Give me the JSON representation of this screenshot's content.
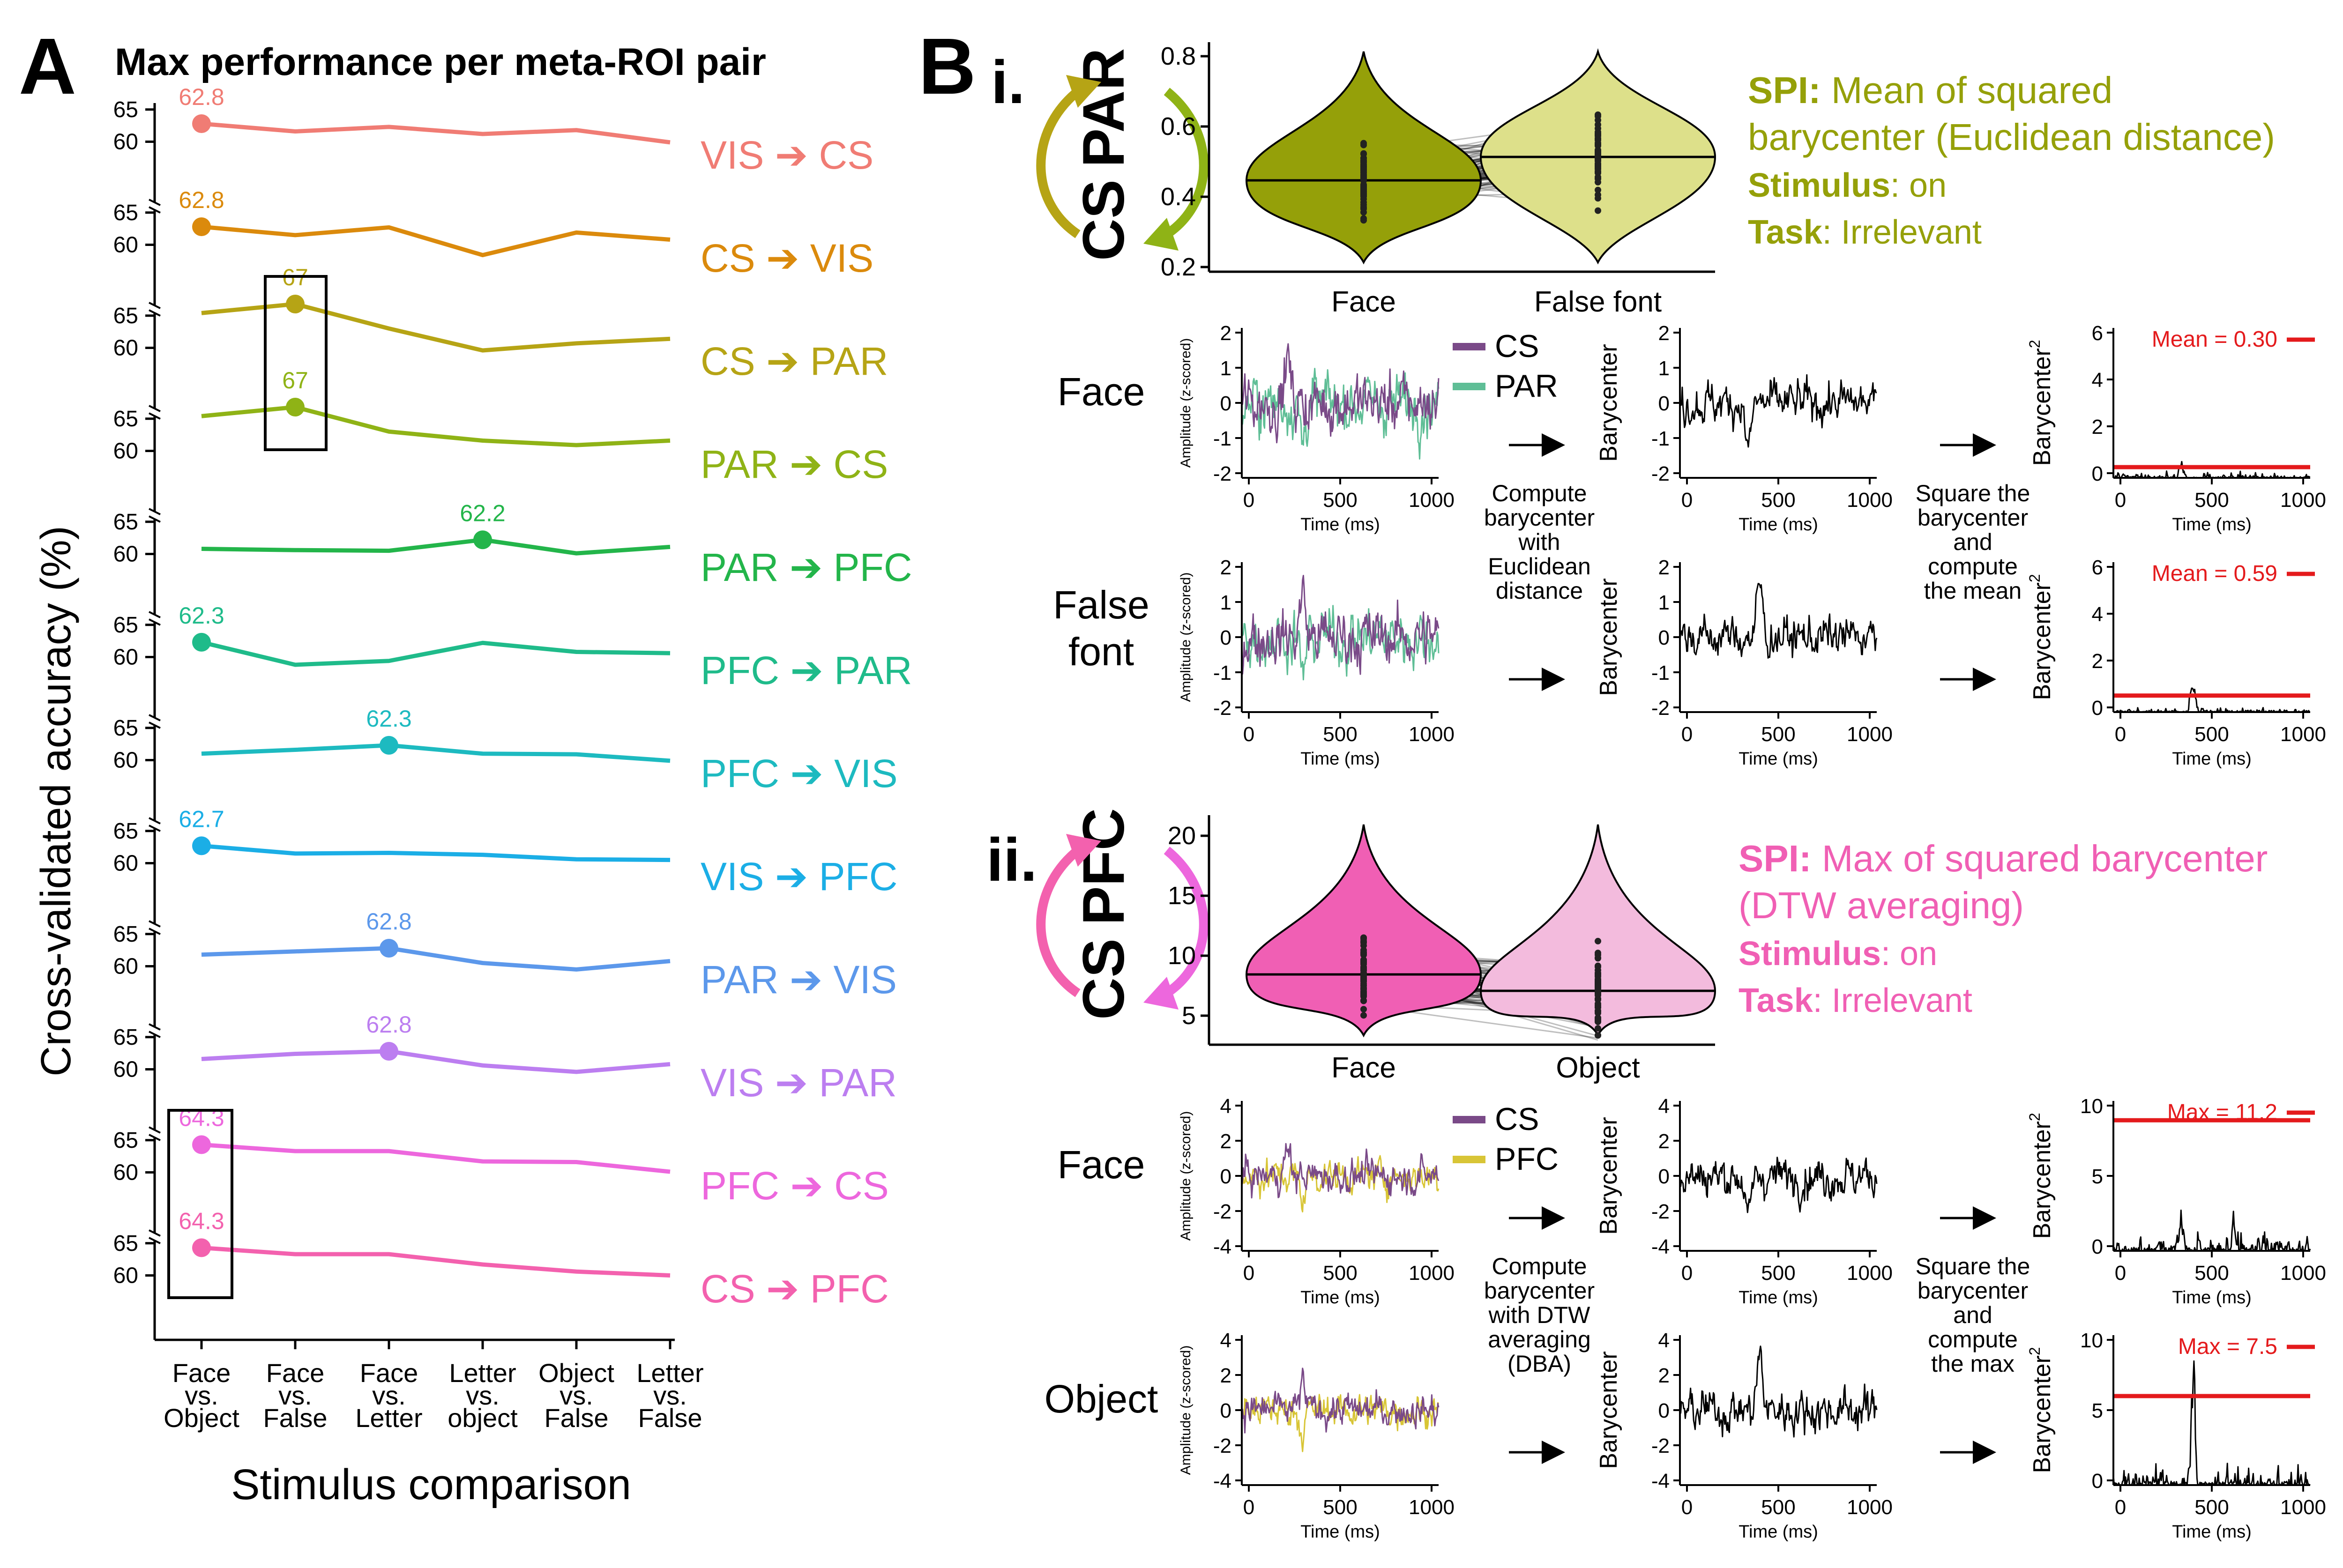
{
  "panel_a": {
    "letter": "A",
    "title": "Max performance per meta-ROI pair",
    "ylabel": "Cross-validated accuracy (%)",
    "xlabel": "Stimulus comparison",
    "categories": [
      [
        "Face",
        "vs.",
        "Object"
      ],
      [
        "Face",
        "vs.",
        "False"
      ],
      [
        "Face",
        "vs.",
        "Letter"
      ],
      [
        "Letter",
        "vs.",
        "object"
      ],
      [
        "Object",
        "vs.",
        "False"
      ],
      [
        "Letter",
        "vs.",
        "False"
      ]
    ],
    "arrow": "➔"
  },
  "chart_data": [
    {
      "type": "line",
      "title": "Max performance per meta-ROI pair",
      "xlabel": "Stimulus comparison",
      "ylabel": "Cross-validated accuracy (%)",
      "categories": [
        "Face vs. Object",
        "Face vs. False",
        "Face vs. Letter",
        "Letter vs. object",
        "Object vs. False",
        "Letter vs. False"
      ],
      "ylim": [
        58,
        66
      ],
      "yticks": [
        60,
        65
      ],
      "grid": false,
      "series": [
        {
          "source": "VIS",
          "target": "CS",
          "color": "#F07C74",
          "values": [
            62.8,
            61.6,
            62.3,
            61.2,
            61.8,
            59.9
          ],
          "max_index": 0,
          "max_label": "62.8"
        },
        {
          "source": "CS",
          "target": "VIS",
          "color": "#DB8A0C",
          "values": [
            62.8,
            61.5,
            62.7,
            58.4,
            61.9,
            60.8
          ],
          "max_index": 0,
          "max_label": "62.8"
        },
        {
          "source": "CS",
          "target": "PAR",
          "color": "#B6A415",
          "values": [
            65.4,
            66.8,
            63.0,
            59.6,
            60.7,
            61.4
          ],
          "max_index": 1,
          "max_label": "67"
        },
        {
          "source": "PAR",
          "target": "CS",
          "color": "#8FB316",
          "values": [
            65.4,
            66.8,
            63.0,
            61.6,
            60.9,
            61.6
          ],
          "max_index": 1,
          "max_label": "67"
        },
        {
          "source": "PAR",
          "target": "PFC",
          "color": "#23B54A",
          "values": [
            60.8,
            60.6,
            60.5,
            62.2,
            60.1,
            61.1
          ],
          "max_index": 3,
          "max_label": "62.2"
        },
        {
          "source": "PFC",
          "target": "PAR",
          "color": "#1FBB8A",
          "values": [
            62.3,
            58.8,
            59.4,
            62.2,
            60.8,
            60.6
          ],
          "max_index": 0,
          "max_label": "62.3"
        },
        {
          "source": "PFC",
          "target": "VIS",
          "color": "#1DBAC0",
          "values": [
            61.0,
            61.6,
            62.3,
            61.0,
            60.9,
            59.9
          ],
          "max_index": 2,
          "max_label": "62.3"
        },
        {
          "source": "VIS",
          "target": "PFC",
          "color": "#1BAEE6",
          "values": [
            62.7,
            61.5,
            61.6,
            61.3,
            60.6,
            60.5
          ],
          "max_index": 0,
          "max_label": "62.7"
        },
        {
          "source": "PAR",
          "target": "VIS",
          "color": "#5C98EB",
          "values": [
            61.8,
            62.3,
            62.8,
            60.5,
            59.5,
            60.8
          ],
          "max_index": 2,
          "max_label": "62.8"
        },
        {
          "source": "VIS",
          "target": "PAR",
          "color": "#BC7EF0",
          "values": [
            61.6,
            62.4,
            62.8,
            60.6,
            59.6,
            60.8
          ],
          "max_index": 2,
          "max_label": "62.8"
        },
        {
          "source": "PFC",
          "target": "CS",
          "color": "#ED67DD",
          "values": [
            64.3,
            63.3,
            63.3,
            61.7,
            61.6,
            60.1
          ],
          "max_index": 0,
          "max_label": "64.3"
        },
        {
          "source": "CS",
          "target": "PFC",
          "color": "#F361AE",
          "values": [
            64.3,
            63.3,
            63.3,
            61.7,
            60.6,
            60.0
          ],
          "max_index": 0,
          "max_label": "64.3"
        }
      ]
    },
    {
      "type": "violin",
      "categories": [
        "Face",
        "False font"
      ],
      "ylim": [
        0.2,
        0.8
      ],
      "yticks": [
        "0.2",
        "0.4",
        "0.6",
        "0.8"
      ],
      "medians": [
        0.45,
        0.51
      ],
      "colors": [
        "#95A009",
        "#DDE08A"
      ]
    },
    {
      "type": "violin",
      "categories": [
        "Face",
        "Object"
      ],
      "ylim": [
        4,
        23
      ],
      "yticks": [
        "5",
        "10",
        "15",
        "20"
      ],
      "medians": [
        8.0,
        7.0
      ],
      "colors": [
        "#F05FB4",
        "#F3BBDD"
      ]
    }
  ],
  "panel_b": {
    "letter": "B",
    "time_label": "Time (ms)",
    "time_ticks": [
      "0",
      "500",
      "1000"
    ],
    "amp_label": "Amplitude (z-scored)",
    "bary_label": "Barycenter",
    "bary2_label": "Barycenter",
    "bary2_sup": "2",
    "panel_i": {
      "roman": "i.",
      "roi_top": "PAR",
      "roi_bottom": "CS",
      "arrow_colors": [
        "#B6A415",
        "#8FB316"
      ],
      "spi_label": "SPI:",
      "spi_text_1": " Mean of squared",
      "spi_text_2": "barycenter (Euclidean distance)",
      "stimulus_label": "Stimulus",
      "stimulus_value": ": on",
      "task_label": "Task",
      "task_value": ": Irrelevant",
      "text_color": "#95A009",
      "rows": [
        {
          "name": "Face",
          "legend_a": "CS",
          "legend_b": "PAR",
          "summary": "Mean = 0.30",
          "summary_value": 0.3
        },
        {
          "name_1": "False",
          "name_2": "font",
          "summary": "Mean = 0.59",
          "summary_value": 0.59
        }
      ],
      "amp_ticks": [
        "-2",
        "-1",
        "0",
        "1",
        "2"
      ],
      "bary_ticks": [
        "-2",
        "-1",
        "0",
        "1",
        "2"
      ],
      "bary2_ticks": [
        "0",
        "2",
        "4",
        "6"
      ],
      "step1": [
        "Compute",
        "barycenter",
        "with",
        "Euclidean",
        "distance"
      ],
      "step2": [
        "Square the",
        "barycenter",
        "and",
        "compute",
        "the mean"
      ],
      "colors": {
        "a": "#7A4A88",
        "b": "#5FBE96"
      }
    },
    "panel_ii": {
      "roman": "ii.",
      "roi_top": "PFC",
      "roi_bottom": "CS",
      "arrow_colors": [
        "#F361AE",
        "#ED67DD"
      ],
      "spi_label": "SPI:",
      "spi_text_1": " Max of squared barycenter",
      "spi_text_2": "(DTW averaging)",
      "stimulus_label": "Stimulus",
      "stimulus_value": ": on",
      "task_label": "Task",
      "task_value": ": Irrelevant",
      "text_color": "#F05FB4",
      "rows": [
        {
          "name": "Face",
          "legend_a": "CS",
          "legend_b": "PFC",
          "summary": "Max = 11.2",
          "summary_value": 11.2
        },
        {
          "name": "Object",
          "summary": "Max = 7.5",
          "summary_value": 7.5
        }
      ],
      "amp_ticks": [
        "-4",
        "-2",
        "0",
        "2",
        "4"
      ],
      "bary_ticks": [
        "-4",
        "-2",
        "0",
        "2",
        "4"
      ],
      "bary2_ticks": [
        "0",
        "5",
        "10"
      ],
      "step1": [
        "Compute",
        "barycenter",
        "with DTW",
        "averaging",
        "(DBA)"
      ],
      "step2": [
        "Square the",
        "barycenter",
        "and",
        "compute",
        "the max"
      ],
      "colors": {
        "a": "#7A4A88",
        "b": "#D8C536"
      }
    }
  }
}
